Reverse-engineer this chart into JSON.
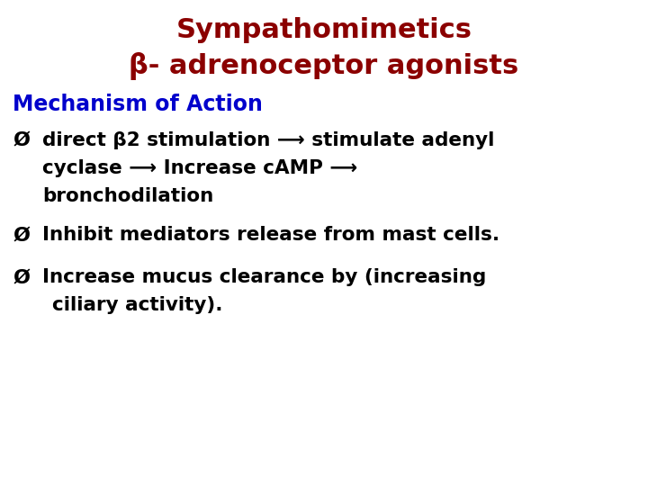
{
  "title_line1": "Sympathomimetics",
  "title_line2": "β- adrenoceptor agonists",
  "title_color": "#8b0000",
  "subtitle": "Mechanism of Action",
  "subtitle_color": "#0000cc",
  "background_color": "#ffffff",
  "body_color": "#000000",
  "title_fontsize": 22,
  "subtitle_fontsize": 17,
  "body_fontsize": 15.5,
  "bullet_symbol": "Ø"
}
